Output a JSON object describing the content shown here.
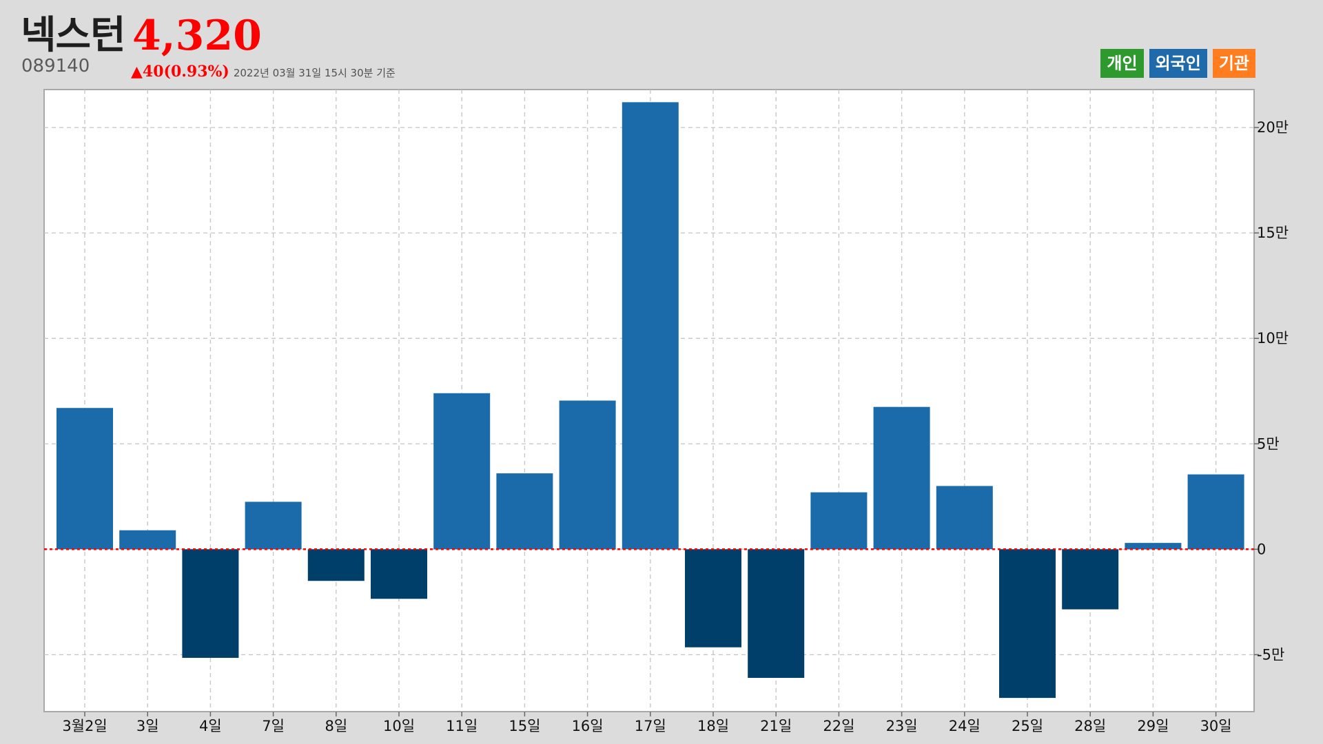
{
  "header": {
    "stock_name": "넥스턴",
    "price": "4,320",
    "stock_code": "089140",
    "change_arrow": "▲",
    "change": "40(0.93%)",
    "timestamp": "2022년 03월 31일 15시 30분 기준",
    "price_color": "#ff0000"
  },
  "legend": [
    {
      "label": "개인",
      "color": "#2e9a2e"
    },
    {
      "label": "외국인",
      "color": "#1f6aab"
    },
    {
      "label": "기관",
      "color": "#ff7d1e"
    }
  ],
  "chart_data": {
    "type": "bar",
    "title": "",
    "xlabel": "",
    "ylabel": "",
    "categories": [
      "3월2일",
      "3일",
      "4일",
      "7일",
      "8일",
      "10일",
      "11일",
      "15일",
      "16일",
      "17일",
      "18일",
      "21일",
      "22일",
      "23일",
      "24일",
      "25일",
      "28일",
      "29일",
      "30일"
    ],
    "series": [
      {
        "name": "외국인",
        "values": [
          67000,
          9000,
          -51500,
          22500,
          -15000,
          -23500,
          74000,
          36000,
          70500,
          212000,
          -46500,
          -61000,
          27000,
          67500,
          30000,
          -70500,
          -28500,
          3000,
          35500
        ]
      }
    ],
    "ylim": [
      -77000,
      218000
    ],
    "yticks": [
      -50000,
      0,
      50000,
      100000,
      150000,
      200000
    ],
    "ytick_labels": [
      "-5만",
      "0",
      "5만",
      "10만",
      "15만",
      "20만"
    ],
    "y_axis_position": "right",
    "grid": true,
    "zero_line": "red-dotted",
    "colors": {
      "positive": "#1b6aa9",
      "negative": "#003f69",
      "zero_line": "#ff0000"
    },
    "legend_position": "top-right"
  }
}
